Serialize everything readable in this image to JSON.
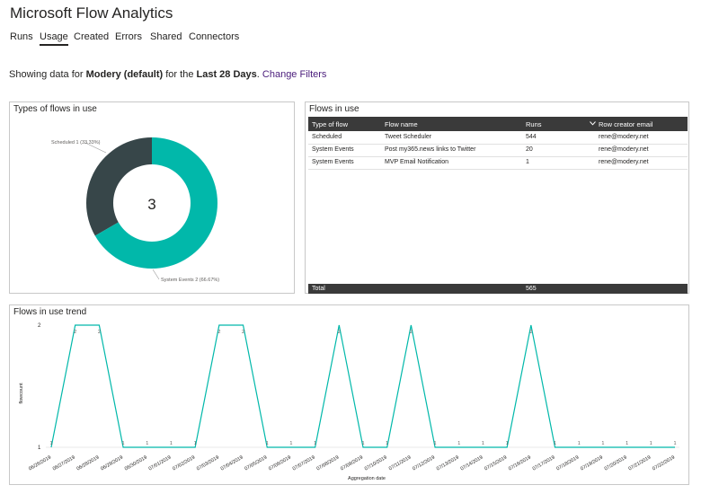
{
  "header": {
    "title": "Microsoft Flow Analytics",
    "tabs": [
      "Runs",
      "Usage",
      "Created",
      "Errors",
      "Shared",
      "Connectors"
    ],
    "active_tab": "Usage"
  },
  "filter": {
    "prefix": "Showing data for",
    "entity": "Modery (default)",
    "middle": "for the",
    "period": "Last 28 Days",
    "suffix": ".",
    "link": "Change Filters"
  },
  "donut": {
    "title": "Types of flows in use",
    "center_value": "3",
    "label_scheduled": "Scheduled 1 (33.33%)",
    "label_system": "System Events 2 (66.67%)"
  },
  "flows_table": {
    "title": "Flows in use",
    "columns": [
      "Type of flow",
      "Flow name",
      "Runs",
      "Row creator email"
    ],
    "sort_icon": "chevron-down-icon",
    "rows": [
      [
        "Scheduled",
        "Tweet Scheduler",
        "544",
        "rene@modery.net"
      ],
      [
        "System Events",
        "Post my365.news links to Twitter",
        "20",
        "rene@modery.net"
      ],
      [
        "System Events",
        "MVP Email Notification",
        "1",
        "rene@modery.net"
      ]
    ],
    "total_label": "Total",
    "total_runs": "565"
  },
  "trend": {
    "title": "Flows in use trend",
    "ylabel": "flowcount",
    "xlabel": "Aggregation date"
  },
  "colors": {
    "accent": "#01b8aa",
    "dark": "#374649",
    "link": "#4a1c7b",
    "table_header": "#3a3a3a"
  },
  "chart_data": [
    {
      "type": "pie",
      "title": "Types of flows in use",
      "categories": [
        "Scheduled",
        "System Events"
      ],
      "values": [
        1,
        2
      ],
      "percentages": [
        33.33,
        66.67
      ],
      "center_total": 3
    },
    {
      "type": "line",
      "title": "Flows in use trend",
      "xlabel": "Aggregation date",
      "ylabel": "flowcount",
      "ylim": [
        1,
        2
      ],
      "x": [
        "06/26/2019",
        "06/27/2019",
        "06/28/2019",
        "06/29/2019",
        "06/30/2019",
        "07/01/2019",
        "07/02/2019",
        "07/03/2019",
        "07/04/2019",
        "07/05/2019",
        "07/06/2019",
        "07/07/2019",
        "07/08/2019",
        "07/09/2019",
        "07/10/2019",
        "07/11/2019",
        "07/12/2019",
        "07/13/2019",
        "07/14/2019",
        "07/15/2019",
        "07/16/2019",
        "07/17/2019",
        "07/18/2019",
        "07/19/2019",
        "07/20/2019",
        "07/21/2019",
        "07/22/2019"
      ],
      "series": [
        {
          "values": [
            1,
            2,
            2,
            1,
            1,
            1,
            1,
            2,
            2,
            1,
            1,
            1,
            2,
            1,
            1,
            2,
            1,
            1,
            1,
            1,
            2,
            1,
            1,
            1,
            1,
            1,
            1
          ]
        }
      ]
    }
  ]
}
